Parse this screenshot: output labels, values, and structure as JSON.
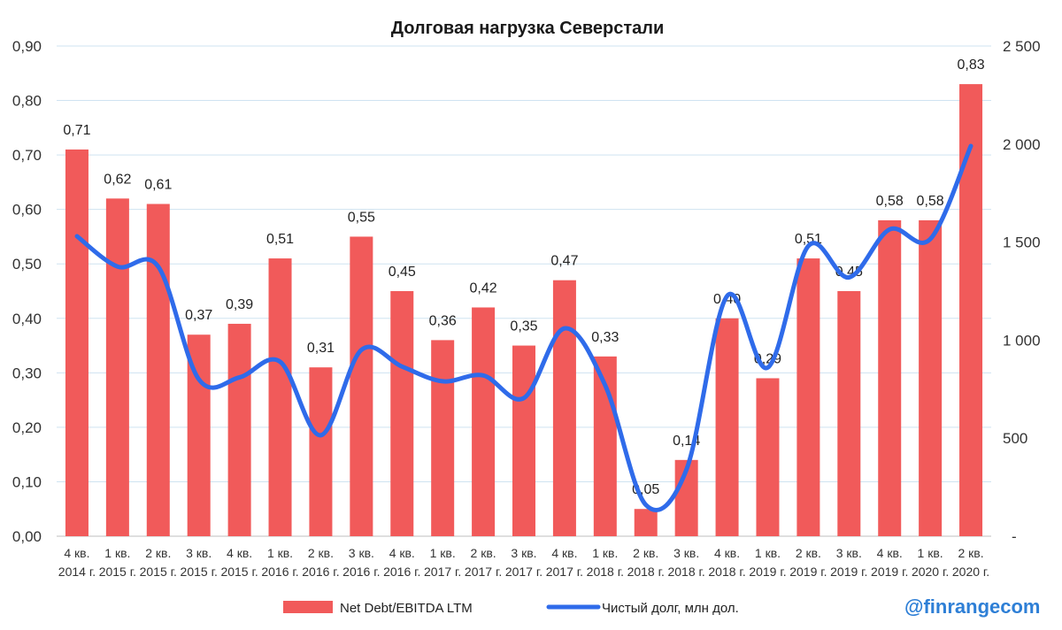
{
  "chart_data": {
    "type": "bar",
    "title": "Долговая нагрузка Северстали",
    "categories": [
      [
        "4 кв.",
        "2014 г."
      ],
      [
        "1 кв.",
        "2015 г."
      ],
      [
        "2 кв.",
        "2015 г."
      ],
      [
        "3 кв.",
        "2015 г."
      ],
      [
        "4 кв.",
        "2015 г."
      ],
      [
        "1 кв.",
        "2016 г."
      ],
      [
        "2 кв.",
        "2016 г."
      ],
      [
        "3 кв.",
        "2016 г."
      ],
      [
        "4 кв.",
        "2016 г."
      ],
      [
        "1 кв.",
        "2017 г."
      ],
      [
        "2 кв.",
        "2017 г."
      ],
      [
        "3 кв.",
        "2017 г."
      ],
      [
        "4 кв.",
        "2017 г."
      ],
      [
        "1 кв.",
        "2018 г."
      ],
      [
        "2 кв.",
        "2018 г."
      ],
      [
        "3 кв.",
        "2018 г."
      ],
      [
        "4 кв.",
        "2018 г."
      ],
      [
        "1 кв.",
        "2019 г."
      ],
      [
        "2 кв.",
        "2019 г."
      ],
      [
        "3 кв.",
        "2019 г."
      ],
      [
        "4 кв.",
        "2019 г."
      ],
      [
        "1 кв.",
        "2020 г."
      ],
      [
        "2 кв.",
        "2020 г."
      ]
    ],
    "series": [
      {
        "name": "Net Debt/EBITDA LTM",
        "type": "bar",
        "axis": "left",
        "color": "#f15a5a",
        "values": [
          0.71,
          0.62,
          0.61,
          0.37,
          0.39,
          0.51,
          0.31,
          0.55,
          0.45,
          0.36,
          0.42,
          0.35,
          0.47,
          0.33,
          0.05,
          0.14,
          0.4,
          0.29,
          0.51,
          0.45,
          0.58,
          0.58,
          0.83
        ],
        "labels": [
          "0,71",
          "0,62",
          "0,61",
          "0,37",
          "0,39",
          "0,51",
          "0,31",
          "0,55",
          "0,45",
          "0,36",
          "0,42",
          "0,35",
          "0,47",
          "0,33",
          "0,05",
          "0,14",
          "0,40",
          "0,29",
          "0,51",
          "0,45",
          "0,58",
          "0,58",
          "0,83"
        ]
      },
      {
        "name": "Чистый долг, млн дол.",
        "type": "line",
        "axis": "right",
        "color": "#2f6bea",
        "values": [
          1530,
          1375,
          1375,
          800,
          810,
          890,
          515,
          950,
          865,
          790,
          820,
          705,
          1060,
          770,
          160,
          340,
          1225,
          860,
          1480,
          1320,
          1565,
          1515,
          1990
        ]
      }
    ],
    "y_left": {
      "range": [
        0,
        0.9
      ],
      "ticks": [
        0,
        0.1,
        0.2,
        0.3,
        0.4,
        0.5,
        0.6,
        0.7,
        0.8,
        0.9
      ],
      "tick_labels": [
        "0,00",
        "0,10",
        "0,20",
        "0,30",
        "0,40",
        "0,50",
        "0,60",
        "0,70",
        "0,80",
        "0,90"
      ]
    },
    "y_right": {
      "range": [
        0,
        2500
      ],
      "ticks": [
        0,
        500,
        1000,
        1500,
        2000,
        2500
      ],
      "tick_labels": [
        "-",
        "500",
        "1 000",
        "1 500",
        "2 000",
        "2 500"
      ]
    },
    "grid": true,
    "legend": "bottom",
    "watermark": "@finrangecom"
  }
}
